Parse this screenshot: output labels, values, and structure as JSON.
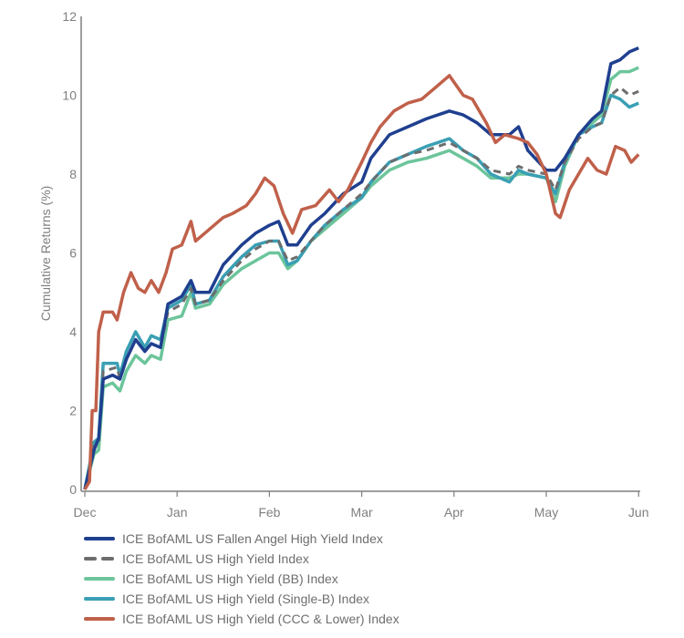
{
  "chart_data": {
    "type": "line",
    "title": "",
    "xlabel": "",
    "ylabel": "Cumulative Returns (%)",
    "ylim": [
      0,
      12
    ],
    "yticks": [
      "0",
      "2",
      "4",
      "6",
      "8",
      "10",
      "12"
    ],
    "xticks": [
      "Dec",
      "Jan",
      "Feb",
      "Mar",
      "Apr",
      "May",
      "Jun"
    ],
    "x_unit": "months since Dec",
    "grid": false,
    "legend_position": "bottom-left",
    "series": [
      {
        "name": "ICE BofAML US High Yield (BB) Index",
        "color": "#6cc59b",
        "dash": false,
        "points": [
          [
            0,
            0
          ],
          [
            0.1,
            0.9
          ],
          [
            0.15,
            1.0
          ],
          [
            0.2,
            2.6
          ],
          [
            0.3,
            2.7
          ],
          [
            0.38,
            2.5
          ],
          [
            0.45,
            3.0
          ],
          [
            0.55,
            3.4
          ],
          [
            0.65,
            3.2
          ],
          [
            0.72,
            3.4
          ],
          [
            0.82,
            3.3
          ],
          [
            0.9,
            4.3
          ],
          [
            1.05,
            4.4
          ],
          [
            1.15,
            5.0
          ],
          [
            1.2,
            4.6
          ],
          [
            1.35,
            4.7
          ],
          [
            1.5,
            5.2
          ],
          [
            1.7,
            5.6
          ],
          [
            1.85,
            5.8
          ],
          [
            2.0,
            6.0
          ],
          [
            2.1,
            6.0
          ],
          [
            2.2,
            5.6
          ],
          [
            2.3,
            5.8
          ],
          [
            2.45,
            6.3
          ],
          [
            2.6,
            6.6
          ],
          [
            2.8,
            7.0
          ],
          [
            3.0,
            7.4
          ],
          [
            3.1,
            7.7
          ],
          [
            3.3,
            8.1
          ],
          [
            3.5,
            8.3
          ],
          [
            3.7,
            8.4
          ],
          [
            3.95,
            8.6
          ],
          [
            4.1,
            8.4
          ],
          [
            4.25,
            8.2
          ],
          [
            4.4,
            7.9
          ],
          [
            4.6,
            7.9
          ],
          [
            4.7,
            8.0
          ],
          [
            4.8,
            8.0
          ],
          [
            5.0,
            7.9
          ],
          [
            5.1,
            7.3
          ],
          [
            5.2,
            8.2
          ],
          [
            5.35,
            9.0
          ],
          [
            5.5,
            9.3
          ],
          [
            5.6,
            9.5
          ],
          [
            5.7,
            10.4
          ],
          [
            5.8,
            10.6
          ],
          [
            5.9,
            10.6
          ],
          [
            6.0,
            10.7
          ]
        ]
      },
      {
        "name": "ICE BofAML US High Yield (Single-B) Index",
        "color": "#3a9fb4",
        "dash": false,
        "points": [
          [
            0,
            0
          ],
          [
            0.1,
            1.2
          ],
          [
            0.15,
            1.3
          ],
          [
            0.2,
            3.2
          ],
          [
            0.35,
            3.2
          ],
          [
            0.38,
            2.9
          ],
          [
            0.45,
            3.5
          ],
          [
            0.55,
            4.0
          ],
          [
            0.65,
            3.6
          ],
          [
            0.72,
            3.9
          ],
          [
            0.82,
            3.8
          ],
          [
            0.9,
            4.6
          ],
          [
            1.05,
            4.8
          ],
          [
            1.15,
            5.2
          ],
          [
            1.2,
            4.7
          ],
          [
            1.35,
            4.8
          ],
          [
            1.5,
            5.4
          ],
          [
            1.7,
            5.9
          ],
          [
            1.85,
            6.2
          ],
          [
            2.0,
            6.3
          ],
          [
            2.1,
            6.3
          ],
          [
            2.2,
            5.7
          ],
          [
            2.3,
            5.8
          ],
          [
            2.45,
            6.3
          ],
          [
            2.6,
            6.7
          ],
          [
            2.8,
            7.1
          ],
          [
            3.0,
            7.4
          ],
          [
            3.1,
            7.8
          ],
          [
            3.3,
            8.3
          ],
          [
            3.5,
            8.5
          ],
          [
            3.7,
            8.7
          ],
          [
            3.95,
            8.9
          ],
          [
            4.1,
            8.6
          ],
          [
            4.25,
            8.4
          ],
          [
            4.4,
            8.0
          ],
          [
            4.6,
            7.8
          ],
          [
            4.7,
            8.1
          ],
          [
            4.8,
            8.0
          ],
          [
            5.0,
            7.9
          ],
          [
            5.1,
            7.5
          ],
          [
            5.2,
            8.3
          ],
          [
            5.35,
            9.0
          ],
          [
            5.5,
            9.2
          ],
          [
            5.6,
            9.3
          ],
          [
            5.7,
            10.0
          ],
          [
            5.8,
            9.9
          ],
          [
            5.9,
            9.7
          ],
          [
            6.0,
            9.8
          ]
        ]
      },
      {
        "name": "ICE BofAML US High Yield Index",
        "color": "#6d6d6d",
        "dash": true,
        "points": [
          [
            0,
            0
          ],
          [
            0.1,
            1.1
          ],
          [
            0.15,
            1.2
          ],
          [
            0.2,
            3.0
          ],
          [
            0.35,
            3.1
          ],
          [
            0.38,
            2.8
          ],
          [
            0.45,
            3.3
          ],
          [
            0.55,
            3.8
          ],
          [
            0.65,
            3.5
          ],
          [
            0.72,
            3.7
          ],
          [
            0.82,
            3.6
          ],
          [
            0.9,
            4.5
          ],
          [
            1.05,
            4.7
          ],
          [
            1.15,
            5.1
          ],
          [
            1.2,
            4.7
          ],
          [
            1.35,
            4.8
          ],
          [
            1.5,
            5.3
          ],
          [
            1.7,
            5.8
          ],
          [
            1.85,
            6.1
          ],
          [
            2.0,
            6.3
          ],
          [
            2.1,
            6.3
          ],
          [
            2.2,
            5.8
          ],
          [
            2.3,
            5.9
          ],
          [
            2.45,
            6.3
          ],
          [
            2.6,
            6.7
          ],
          [
            2.8,
            7.1
          ],
          [
            3.0,
            7.5
          ],
          [
            3.1,
            7.8
          ],
          [
            3.3,
            8.3
          ],
          [
            3.5,
            8.5
          ],
          [
            3.7,
            8.6
          ],
          [
            3.95,
            8.8
          ],
          [
            4.1,
            8.6
          ],
          [
            4.25,
            8.4
          ],
          [
            4.4,
            8.1
          ],
          [
            4.6,
            8.0
          ],
          [
            4.7,
            8.2
          ],
          [
            4.8,
            8.1
          ],
          [
            5.0,
            8.0
          ],
          [
            5.1,
            7.6
          ],
          [
            5.2,
            8.3
          ],
          [
            5.35,
            8.9
          ],
          [
            5.5,
            9.2
          ],
          [
            5.6,
            9.3
          ],
          [
            5.7,
            10.0
          ],
          [
            5.8,
            10.2
          ],
          [
            5.9,
            10.0
          ],
          [
            6.0,
            10.1
          ]
        ]
      },
      {
        "name": "ICE BofAML US Fallen Angel High Yield Index",
        "color": "#1f3f8f",
        "dash": false,
        "points": [
          [
            0,
            0
          ],
          [
            0.1,
            1.0
          ],
          [
            0.15,
            1.3
          ],
          [
            0.2,
            2.8
          ],
          [
            0.3,
            2.9
          ],
          [
            0.38,
            2.8
          ],
          [
            0.45,
            3.3
          ],
          [
            0.55,
            3.8
          ],
          [
            0.65,
            3.5
          ],
          [
            0.72,
            3.7
          ],
          [
            0.82,
            3.6
          ],
          [
            0.9,
            4.7
          ],
          [
            1.05,
            4.9
          ],
          [
            1.15,
            5.3
          ],
          [
            1.2,
            5.0
          ],
          [
            1.35,
            5.0
          ],
          [
            1.5,
            5.7
          ],
          [
            1.7,
            6.2
          ],
          [
            1.85,
            6.5
          ],
          [
            2.0,
            6.7
          ],
          [
            2.1,
            6.8
          ],
          [
            2.2,
            6.2
          ],
          [
            2.3,
            6.2
          ],
          [
            2.45,
            6.7
          ],
          [
            2.6,
            7.0
          ],
          [
            2.8,
            7.5
          ],
          [
            3.0,
            7.8
          ],
          [
            3.1,
            8.4
          ],
          [
            3.3,
            9.0
          ],
          [
            3.5,
            9.2
          ],
          [
            3.7,
            9.4
          ],
          [
            3.95,
            9.6
          ],
          [
            4.1,
            9.5
          ],
          [
            4.25,
            9.3
          ],
          [
            4.4,
            9.0
          ],
          [
            4.6,
            9.0
          ],
          [
            4.7,
            9.2
          ],
          [
            4.8,
            8.6
          ],
          [
            5.0,
            8.1
          ],
          [
            5.1,
            8.1
          ],
          [
            5.2,
            8.4
          ],
          [
            5.35,
            9.0
          ],
          [
            5.5,
            9.4
          ],
          [
            5.6,
            9.6
          ],
          [
            5.7,
            10.8
          ],
          [
            5.8,
            10.9
          ],
          [
            5.9,
            11.1
          ],
          [
            6.0,
            11.2
          ]
        ]
      },
      {
        "name": "ICE BofAML US High Yield (CCC & Lower) Index",
        "color": "#c0604a",
        "dash": false,
        "points": [
          [
            0,
            0
          ],
          [
            0.05,
            0.2
          ],
          [
            0.08,
            2.0
          ],
          [
            0.12,
            2.0
          ],
          [
            0.15,
            4.0
          ],
          [
            0.2,
            4.5
          ],
          [
            0.3,
            4.5
          ],
          [
            0.35,
            4.3
          ],
          [
            0.42,
            5.0
          ],
          [
            0.5,
            5.5
          ],
          [
            0.58,
            5.1
          ],
          [
            0.65,
            5.0
          ],
          [
            0.72,
            5.3
          ],
          [
            0.8,
            5.0
          ],
          [
            0.88,
            5.5
          ],
          [
            0.95,
            6.1
          ],
          [
            1.05,
            6.2
          ],
          [
            1.15,
            6.8
          ],
          [
            1.2,
            6.3
          ],
          [
            1.35,
            6.6
          ],
          [
            1.5,
            6.9
          ],
          [
            1.6,
            7.0
          ],
          [
            1.75,
            7.2
          ],
          [
            1.85,
            7.5
          ],
          [
            1.95,
            7.9
          ],
          [
            2.05,
            7.7
          ],
          [
            2.15,
            7.0
          ],
          [
            2.25,
            6.5
          ],
          [
            2.35,
            7.1
          ],
          [
            2.5,
            7.2
          ],
          [
            2.65,
            7.6
          ],
          [
            2.75,
            7.3
          ],
          [
            2.85,
            7.6
          ],
          [
            3.0,
            8.3
          ],
          [
            3.1,
            8.8
          ],
          [
            3.2,
            9.2
          ],
          [
            3.35,
            9.6
          ],
          [
            3.5,
            9.8
          ],
          [
            3.65,
            9.9
          ],
          [
            3.8,
            10.2
          ],
          [
            3.95,
            10.5
          ],
          [
            4.1,
            10.0
          ],
          [
            4.2,
            9.9
          ],
          [
            4.35,
            9.3
          ],
          [
            4.45,
            8.8
          ],
          [
            4.55,
            9.0
          ],
          [
            4.7,
            8.9
          ],
          [
            4.8,
            8.8
          ],
          [
            4.9,
            8.5
          ],
          [
            5.0,
            8.0
          ],
          [
            5.1,
            7.0
          ],
          [
            5.15,
            6.9
          ],
          [
            5.25,
            7.6
          ],
          [
            5.35,
            8.0
          ],
          [
            5.45,
            8.4
          ],
          [
            5.55,
            8.1
          ],
          [
            5.65,
            8.0
          ],
          [
            5.75,
            8.7
          ],
          [
            5.85,
            8.6
          ],
          [
            5.92,
            8.3
          ],
          [
            6.0,
            8.5
          ]
        ]
      }
    ],
    "legend_order": [
      3,
      2,
      0,
      1,
      4
    ]
  }
}
